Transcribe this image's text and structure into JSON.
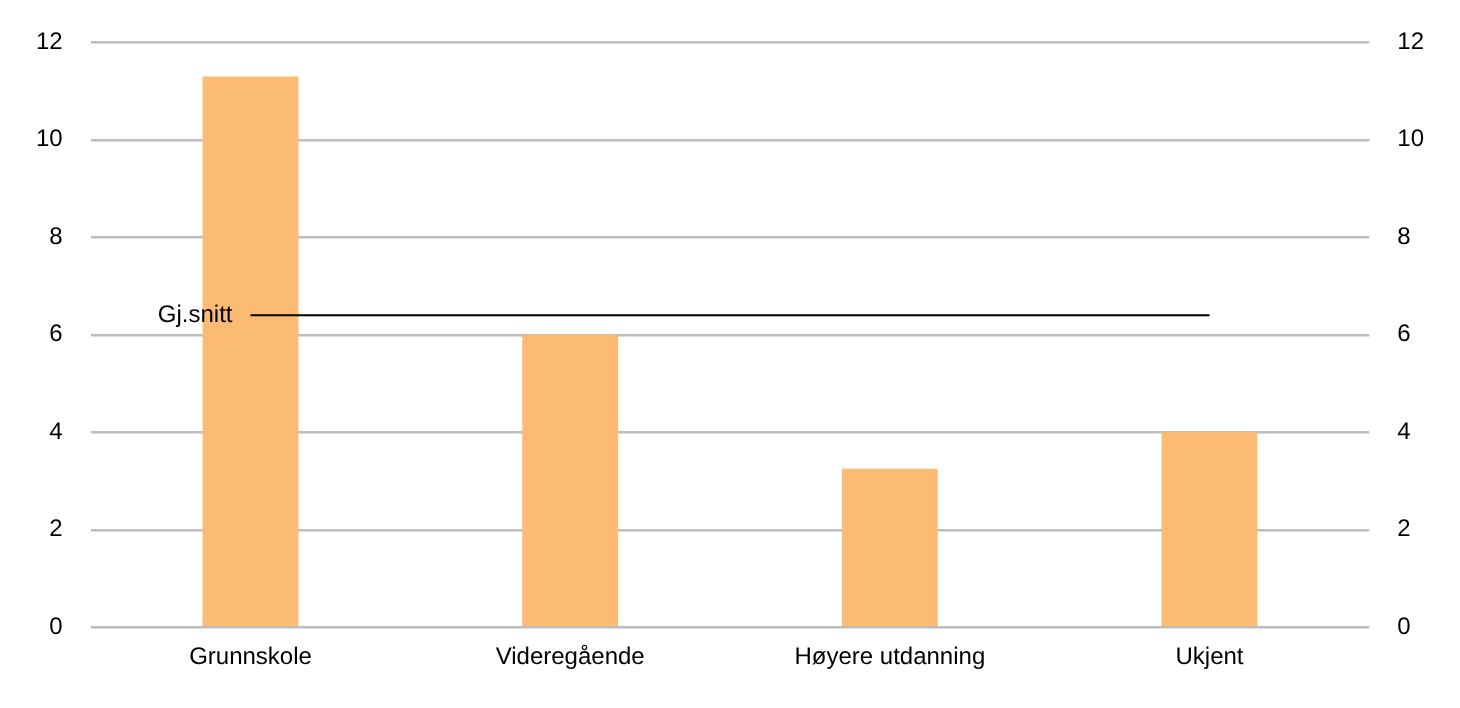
{
  "chart_data": {
    "type": "bar",
    "categories": [
      "Grunnskole",
      "Videregående",
      "Høyere utdanning",
      "Ukjent"
    ],
    "values": [
      11.3,
      6.0,
      3.25,
      4.0
    ],
    "color": "#fbbb73",
    "ylim": [
      0,
      12
    ],
    "yticks": [
      0,
      2,
      4,
      6,
      8,
      10,
      12
    ],
    "y2lim": [
      0,
      12
    ],
    "y2ticks": [
      0,
      2,
      4,
      6,
      8,
      10,
      12
    ],
    "grid": "y",
    "legend": false,
    "ref_lines": [
      {
        "axis": "y",
        "value": 6.4,
        "label": "Gj.snitt",
        "color": "#000000"
      }
    ]
  }
}
